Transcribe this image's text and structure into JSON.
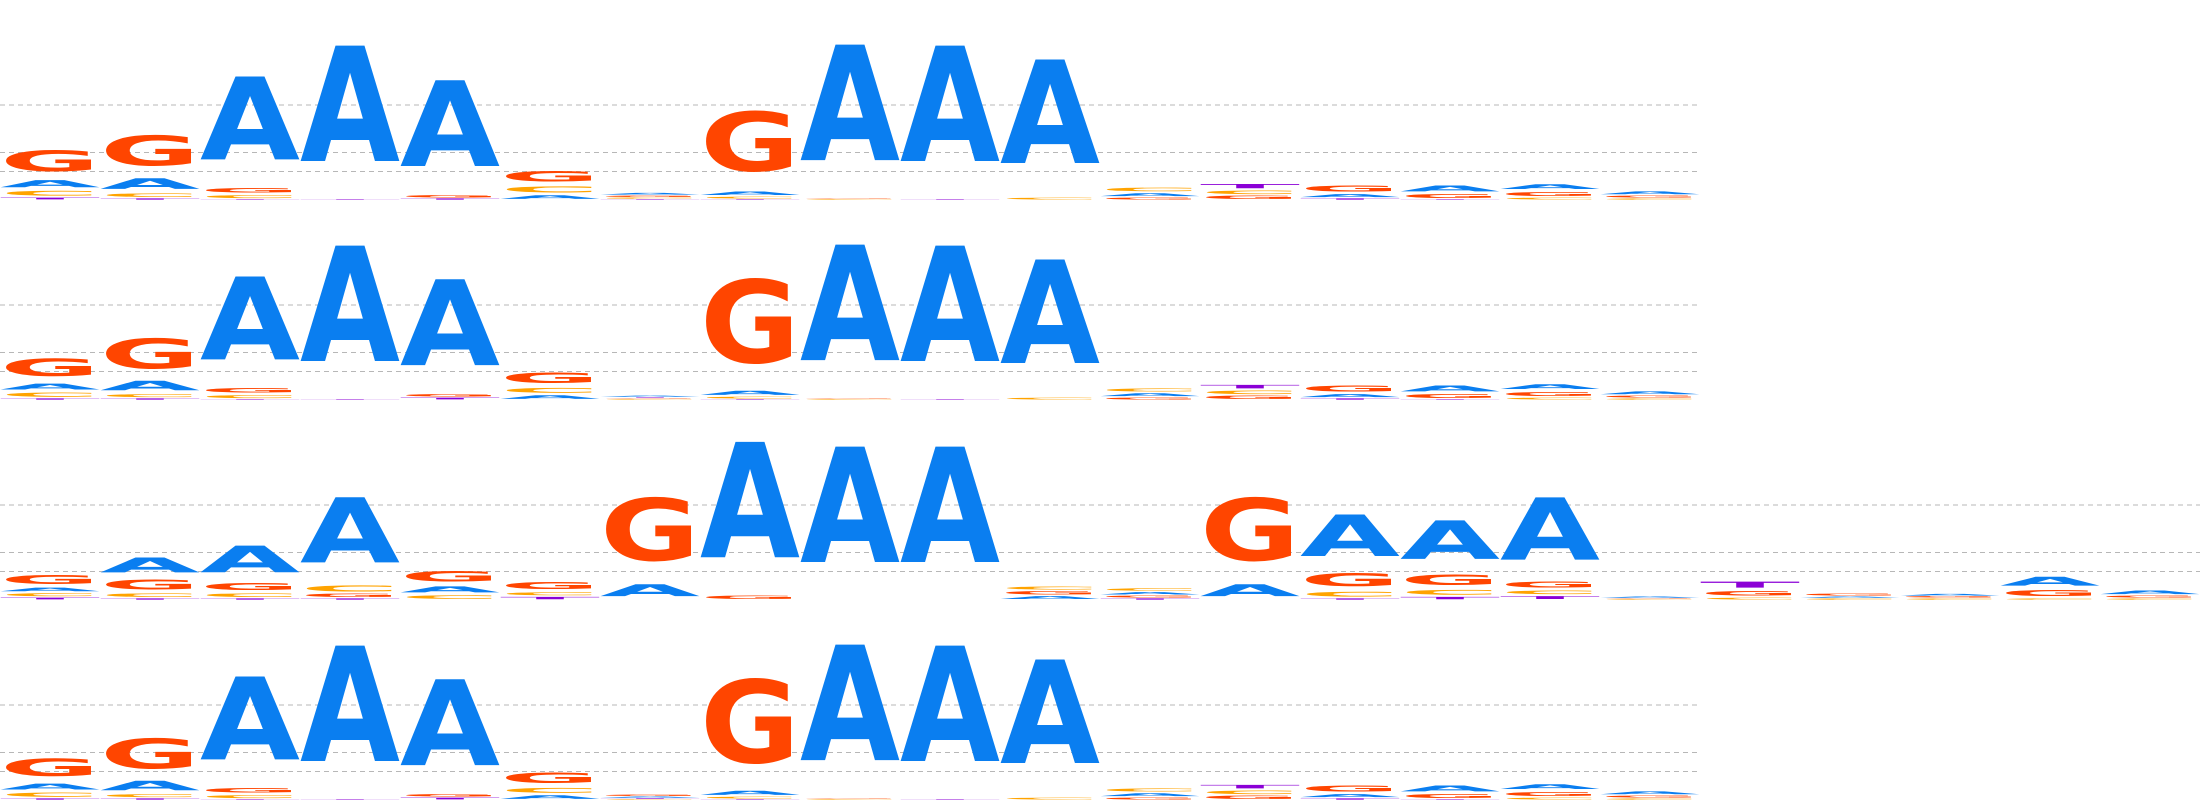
{
  "colors": {
    "A": "#0a7ef0",
    "C": "#ffa300",
    "G": "#ff4500",
    "T": "#8b00d6",
    "grid": "#999999",
    "background": "#ffffff"
  },
  "chart_data": [
    {
      "type": "sequence-logo",
      "alphabet": [
        "A",
        "C",
        "G",
        "T"
      ],
      "grid": true,
      "columns": [
        {
          "G": 0.35,
          "A": 0.12,
          "C": 0.08,
          "T": 0.03
        },
        {
          "G": 0.5,
          "A": 0.18,
          "C": 0.06,
          "T": 0.02
        },
        {
          "A": 1.4,
          "C": 0.05,
          "G": 0.08,
          "T": 0.01
        },
        {
          "A": 1.95,
          "T": 0.01
        },
        {
          "A": 1.45,
          "T": 0.02,
          "G": 0.04
        },
        {
          "G": 0.18,
          "C": 0.1,
          "A": 0.06
        },
        {
          "A": 0.03,
          "C": 0.02,
          "G": 0.02,
          "T": 0.01
        },
        {
          "G": 1.0,
          "A": 0.06,
          "C": 0.03,
          "T": 0.01
        },
        {
          "A": 1.95,
          "C": 0.01,
          "G": 0.01
        },
        {
          "A": 1.95,
          "T": 0.01
        },
        {
          "A": 1.75,
          "C": 0.03
        },
        {
          "A": 0.05,
          "C": 0.06,
          "G": 0.03
        },
        {
          "C": 0.06,
          "G": 0.05,
          "T": 0.07
        },
        {
          "G": 0.1,
          "A": 0.05,
          "T": 0.02
        },
        {
          "A": 0.1,
          "G": 0.06,
          "T": 0.01
        },
        {
          "A": 0.08,
          "G": 0.07,
          "C": 0.03
        },
        {
          "A": 0.05,
          "G": 0.03,
          "C": 0.02
        }
      ]
    },
    {
      "type": "sequence-logo",
      "alphabet": [
        "A",
        "C",
        "G",
        "T"
      ],
      "grid": true,
      "columns": [
        {
          "G": 0.3,
          "A": 0.1,
          "C": 0.07,
          "T": 0.02
        },
        {
          "G": 0.5,
          "A": 0.16,
          "C": 0.05,
          "T": 0.02
        },
        {
          "A": 1.4,
          "C": 0.05,
          "G": 0.08,
          "T": 0.01
        },
        {
          "A": 1.95,
          "T": 0.01
        },
        {
          "A": 1.45,
          "T": 0.03,
          "G": 0.04
        },
        {
          "G": 0.18,
          "C": 0.08,
          "A": 0.06
        },
        {
          "A": 0.02,
          "C": 0.01,
          "G": 0.01,
          "T": 0.01
        },
        {
          "G": 1.4,
          "A": 0.07,
          "C": 0.03,
          "T": 0.01
        },
        {
          "A": 1.95,
          "C": 0.01,
          "G": 0.01
        },
        {
          "A": 1.95,
          "T": 0.01
        },
        {
          "A": 1.75,
          "C": 0.03
        },
        {
          "A": 0.05,
          "C": 0.05,
          "G": 0.03
        },
        {
          "C": 0.06,
          "G": 0.05,
          "T": 0.06
        },
        {
          "G": 0.1,
          "A": 0.05,
          "T": 0.02
        },
        {
          "A": 0.1,
          "G": 0.06,
          "T": 0.01
        },
        {
          "A": 0.08,
          "G": 0.07,
          "C": 0.03
        },
        {
          "A": 0.05,
          "G": 0.03,
          "C": 0.02
        }
      ]
    },
    {
      "type": "sequence-logo",
      "alphabet": [
        "A",
        "C",
        "G",
        "T"
      ],
      "grid": true,
      "columns": [
        {
          "G": 0.15,
          "A": 0.06,
          "C": 0.05,
          "T": 0.03
        },
        {
          "A": 0.25,
          "G": 0.16,
          "C": 0.06,
          "T": 0.02
        },
        {
          "A": 0.45,
          "G": 0.12,
          "C": 0.06,
          "T": 0.02
        },
        {
          "A": 1.1,
          "C": 0.1,
          "G": 0.05,
          "T": 0.02
        },
        {
          "G": 0.18,
          "A": 0.1,
          "C": 0.06
        },
        {
          "G": 0.12,
          "C": 0.05,
          "T": 0.04
        },
        {
          "G": 1.05,
          "A": 0.2
        },
        {
          "A": 1.95,
          "G": 0.05
        },
        {
          "A": 1.95
        },
        {
          "A": 1.95
        },
        {
          "A": 0.05,
          "G": 0.05,
          "C": 0.05
        },
        {
          "A": 0.04,
          "C": 0.04,
          "G": 0.03,
          "T": 0.02
        },
        {
          "G": 1.05,
          "A": 0.2
        },
        {
          "A": 0.7,
          "G": 0.22,
          "C": 0.08,
          "T": 0.02
        },
        {
          "A": 0.65,
          "G": 0.18,
          "C": 0.08,
          "T": 0.04
        },
        {
          "A": 1.05,
          "G": 0.1,
          "C": 0.06,
          "T": 0.05
        },
        {
          "A": 0.02,
          "C": 0.01,
          "G": 0.01
        },
        {
          "G": 0.08,
          "T": 0.1,
          "C": 0.03
        },
        {
          "G": 0.03,
          "C": 0.02,
          "A": 0.02
        },
        {
          "A": 0.03,
          "C": 0.02,
          "G": 0.02
        },
        {
          "A": 0.15,
          "G": 0.1,
          "C": 0.02
        },
        {
          "A": 0.06,
          "G": 0.03,
          "C": 0.02
        }
      ]
    },
    {
      "type": "sequence-logo",
      "alphabet": [
        "A",
        "C",
        "G",
        "T"
      ],
      "grid": true,
      "columns": [
        {
          "G": 0.3,
          "A": 0.1,
          "C": 0.07,
          "T": 0.02
        },
        {
          "G": 0.5,
          "A": 0.16,
          "C": 0.05,
          "T": 0.02
        },
        {
          "A": 1.4,
          "C": 0.05,
          "G": 0.08,
          "T": 0.01
        },
        {
          "A": 1.95,
          "T": 0.01
        },
        {
          "A": 1.45,
          "T": 0.03,
          "G": 0.04
        },
        {
          "G": 0.18,
          "C": 0.08,
          "A": 0.06
        },
        {
          "A": 0.02,
          "C": 0.01,
          "G": 0.02,
          "T": 0.01
        },
        {
          "G": 1.4,
          "A": 0.07,
          "C": 0.03,
          "T": 0.01
        },
        {
          "A": 1.95,
          "C": 0.01,
          "G": 0.01
        },
        {
          "A": 1.95,
          "T": 0.01
        },
        {
          "A": 1.75,
          "C": 0.03
        },
        {
          "A": 0.05,
          "C": 0.05,
          "G": 0.03
        },
        {
          "C": 0.06,
          "G": 0.05,
          "T": 0.06
        },
        {
          "G": 0.1,
          "A": 0.05,
          "T": 0.02
        },
        {
          "A": 0.1,
          "G": 0.06,
          "T": 0.01
        },
        {
          "A": 0.08,
          "G": 0.07,
          "C": 0.03
        },
        {
          "A": 0.05,
          "G": 0.03,
          "C": 0.02
        }
      ]
    }
  ]
}
